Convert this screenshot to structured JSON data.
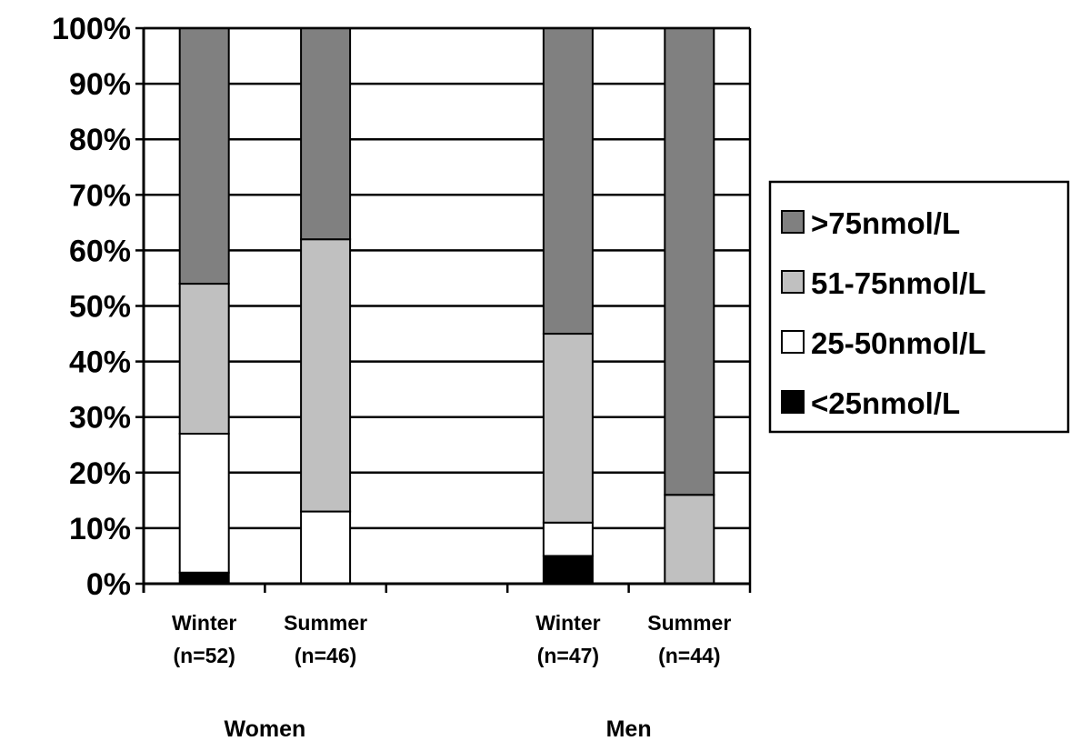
{
  "chart_data": {
    "type": "bar",
    "stacked": true,
    "percent_stacked": true,
    "ylim": [
      0,
      100
    ],
    "yticks": [
      0,
      10,
      20,
      30,
      40,
      50,
      60,
      70,
      80,
      90,
      100
    ],
    "ytick_labels": [
      "0%",
      "10%",
      "20%",
      "30%",
      "40%",
      "50%",
      "60%",
      "70%",
      "80%",
      "90%",
      "100%"
    ],
    "grid": true,
    "legend_position": "right",
    "slots": 5,
    "categories": [
      {
        "line1": "Winter",
        "line2": "(n=52)",
        "slot": 0
      },
      {
        "line1": "Summer",
        "line2": "(n=46)",
        "slot": 1
      },
      {
        "line1": "Winter",
        "line2": "(n=47)",
        "slot": 3
      },
      {
        "line1": "Summer",
        "line2": "(n=44)",
        "slot": 4
      }
    ],
    "groups": [
      {
        "label": "Women",
        "slot_center": 1.0
      },
      {
        "label": "Men",
        "slot_center": 4.0
      }
    ],
    "series": [
      {
        "name": "<25nmol/L",
        "color": "#000000",
        "values": [
          2,
          0,
          5,
          0
        ]
      },
      {
        "name": "25-50nmol/L",
        "color": "#ffffff",
        "values": [
          25,
          13,
          6,
          0
        ]
      },
      {
        "name": "51-75nmol/L",
        "color": "#c0c0c0",
        "values": [
          27,
          49,
          34,
          16
        ]
      },
      {
        "name": ">75nmol/L",
        "color": "#808080",
        "values": [
          46,
          38,
          55,
          84
        ]
      }
    ],
    "legend_order": [
      3,
      2,
      1,
      0
    ]
  }
}
